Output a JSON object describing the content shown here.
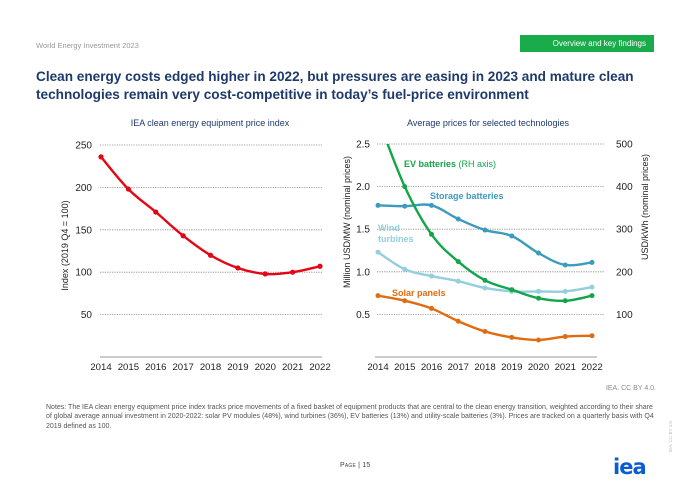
{
  "header": {
    "publication": "World Energy Investment 2023",
    "section_badge": "Overview and key findings",
    "title": "Clean energy costs edged higher in 2022, but pressures are easing in 2023 and mature clean technologies remain very cost-competitive in today’s fuel-price environment"
  },
  "colors": {
    "title": "#1d3a6b",
    "badge": "#1aab4b",
    "index_line": "#e30613",
    "ev_batteries": "#12a54a",
    "storage_batteries": "#3a9bbd",
    "wind_turbines": "#93cfdc",
    "solar_panels": "#e06c12",
    "logo": "#0a5cd6"
  },
  "chart_data": [
    {
      "type": "line",
      "title": "IEA clean energy equipment price index",
      "xlabel": "",
      "ylabel": "Index (2019 Q4 = 100)",
      "x": [
        "2014",
        "2015",
        "2016",
        "2017",
        "2018",
        "2019",
        "2020",
        "2021",
        "2022"
      ],
      "ylim": [
        0,
        250
      ],
      "yticks": [
        "50",
        "100",
        "150",
        "200",
        "250"
      ],
      "grid": true,
      "series": [
        {
          "name": "IEA clean energy equipment price index",
          "values": [
            236,
            198,
            171,
            143,
            120,
            105,
            98,
            100,
            107
          ]
        }
      ]
    },
    {
      "type": "line",
      "title": "Average prices for selected technologies",
      "xlabel": "",
      "ylabel": "Million USD/MW (nominal prices)",
      "y2label": "USD/kWh (nominal prices)",
      "x": [
        "2014",
        "2015",
        "2016",
        "2017",
        "2018",
        "2019",
        "2020",
        "2021",
        "2022"
      ],
      "ylim": [
        0,
        2.5
      ],
      "y2lim": [
        0,
        500
      ],
      "yticks": [
        "0.5",
        "1.0",
        "1.5",
        "2.0",
        "2.5"
      ],
      "y2ticks": [
        "100",
        "200",
        "300",
        "400",
        "500"
      ],
      "grid": true,
      "series": [
        {
          "name": "EV batteries",
          "label": "EV batteries",
          "label_suffix": " (RH axis)",
          "axis": "right",
          "values": [
            560,
            400,
            288,
            224,
            180,
            158,
            138,
            132,
            144
          ]
        },
        {
          "name": "Storage batteries",
          "label": "Storage batteries",
          "axis": "left",
          "values": [
            1.78,
            1.77,
            1.78,
            1.62,
            1.49,
            1.42,
            1.22,
            1.08,
            1.11
          ]
        },
        {
          "name": "Wind turbines",
          "label_line1": "Wind",
          "label_line2": "turbines",
          "axis": "left",
          "values": [
            1.23,
            1.03,
            0.95,
            0.89,
            0.81,
            0.77,
            0.77,
            0.77,
            0.82
          ]
        },
        {
          "name": "Solar panels",
          "label": "Solar panels",
          "axis": "left",
          "values": [
            0.72,
            0.66,
            0.57,
            0.42,
            0.3,
            0.23,
            0.2,
            0.24,
            0.25
          ]
        }
      ]
    }
  ],
  "footer": {
    "source": "IEA. CC BY 4.0.",
    "notes": "Notes: The IEA clean energy equipment price index tracks price movements of a fixed basket of equipment products that are central to the clean energy transition, weighted according to their share of global average annual investment in 2020-2022: solar PV modules (48%), wind turbines (36%), EV batteries (13%) and utility-scale batteries (3%). Prices are tracked on a quarterly basis with Q4 2019 defined as 100.",
    "page": "Page | 15",
    "logo": "iea",
    "side_license": "IEA. CC BY 4.0."
  }
}
